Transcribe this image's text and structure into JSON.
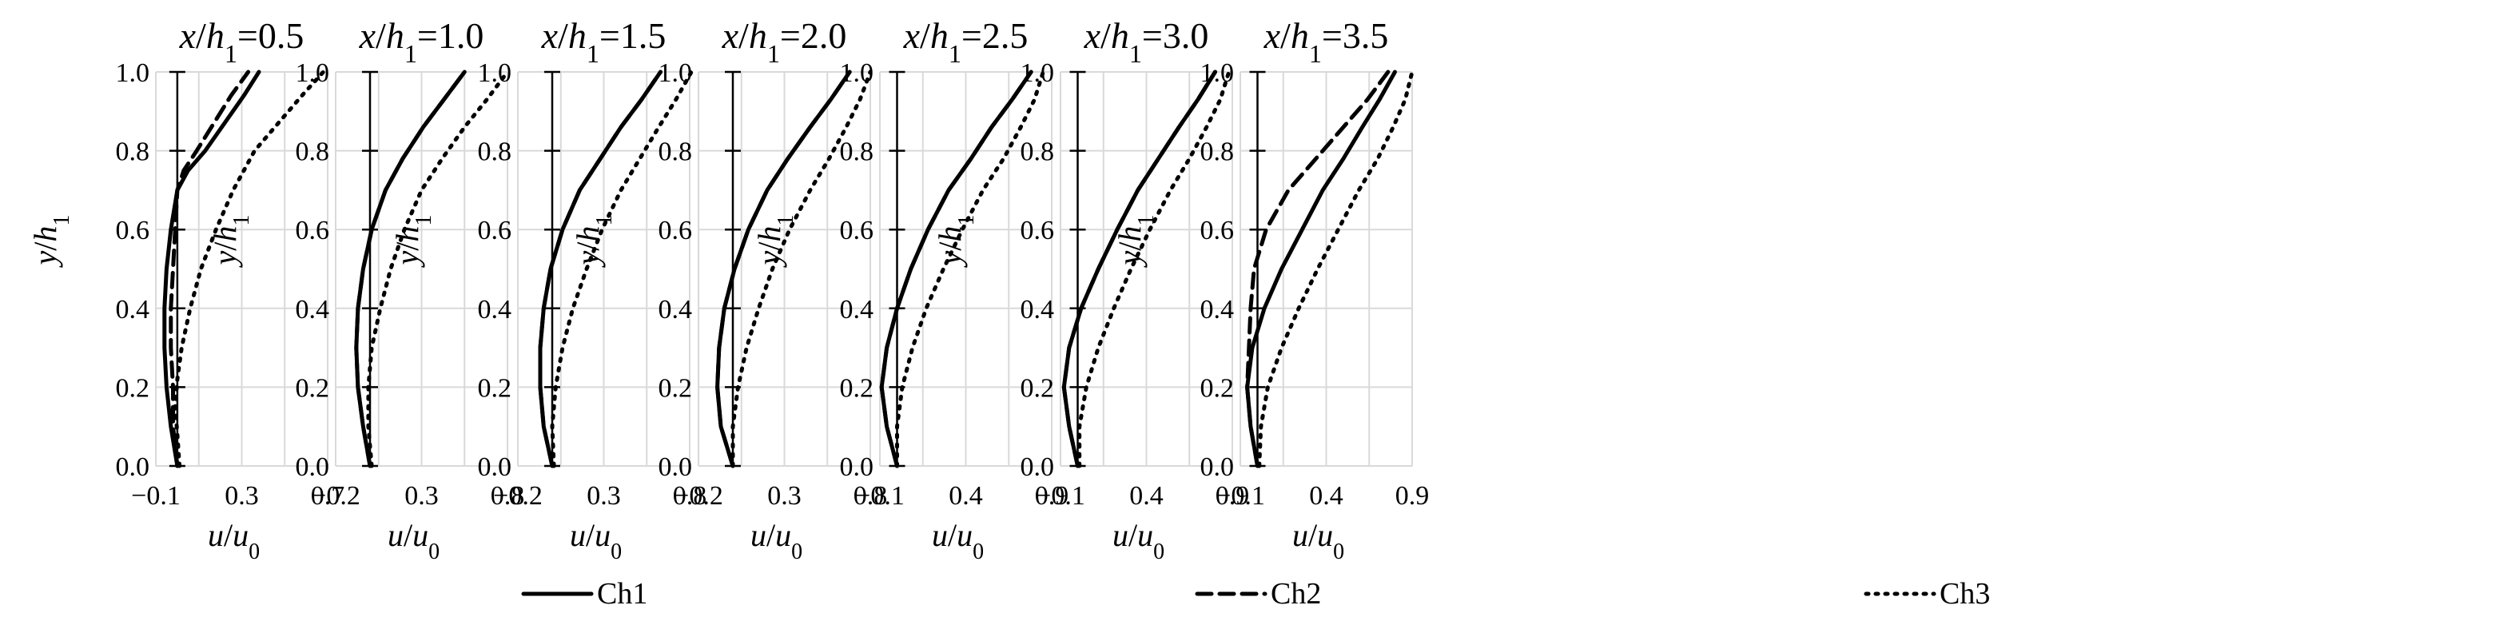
{
  "chart_data": {
    "type": "line",
    "legend": {
      "position": "bottom",
      "entries": [
        {
          "name": "Ch1",
          "dash": "solid"
        },
        {
          "name": "Ch2",
          "dash": "dashed"
        },
        {
          "name": "Ch3",
          "dash": "dotted"
        }
      ]
    },
    "panels": [
      {
        "title": {
          "var": "x",
          "den": "h",
          "sub": "1",
          "eq": "=0.5"
        },
        "xlabel": {
          "var": "u",
          "den": "u",
          "sub": "0"
        },
        "ylabel": {
          "var": "y",
          "den": "h",
          "sub": "1"
        },
        "xlim": [
          -0.1,
          0.7
        ],
        "ylim": [
          0.0,
          1.0
        ],
        "xticks": [
          -0.1,
          0.3,
          0.7
        ],
        "xtick_labels": [
          "−0.1",
          "0.3",
          "0.7"
        ],
        "yticks": [
          0.0,
          0.2,
          0.4,
          0.6,
          0.8,
          1.0
        ],
        "ytick_labels": [
          "0.0",
          "0.2",
          "0.4",
          "0.6",
          "0.8",
          "1.0"
        ],
        "grid": true,
        "zero_line": true,
        "series": [
          {
            "name": "Ch1",
            "x": [
              0.0,
              -0.03,
              -0.05,
              -0.06,
              -0.06,
              -0.05,
              -0.03,
              0.0,
              0.05,
              0.13,
              0.22,
              0.31,
              0.38
            ],
            "y": [
              0.0,
              0.1,
              0.2,
              0.3,
              0.4,
              0.5,
              0.6,
              0.7,
              0.75,
              0.8,
              0.87,
              0.94,
              1.0
            ]
          },
          {
            "name": "Ch2",
            "x": [
              0.0,
              -0.02,
              -0.02,
              -0.03,
              -0.03,
              -0.02,
              -0.01,
              0.0,
              0.03,
              0.09,
              0.17,
              0.25,
              0.33
            ],
            "y": [
              0.0,
              0.1,
              0.2,
              0.3,
              0.4,
              0.5,
              0.6,
              0.7,
              0.75,
              0.8,
              0.87,
              0.94,
              1.0
            ]
          },
          {
            "name": "Ch3",
            "x": [
              0.01,
              0.0,
              -0.01,
              0.0,
              0.02,
              0.06,
              0.11,
              0.18,
              0.26,
              0.36,
              0.47,
              0.58,
              0.68
            ],
            "y": [
              0.0,
              0.08,
              0.15,
              0.22,
              0.3,
              0.4,
              0.5,
              0.6,
              0.7,
              0.8,
              0.87,
              0.94,
              1.0
            ]
          }
        ]
      },
      {
        "title": {
          "var": "x",
          "den": "h",
          "sub": "1",
          "eq": "=1.0"
        },
        "xlabel": {
          "var": "u",
          "den": "u",
          "sub": "0"
        },
        "ylabel": {
          "var": "y",
          "den": "h",
          "sub": "1"
        },
        "xlim": [
          -0.2,
          0.8
        ],
        "ylim": [
          0.0,
          1.0
        ],
        "xticks": [
          -0.2,
          0.3,
          0.8
        ],
        "xtick_labels": [
          "−0.2",
          "0.3",
          "0.8"
        ],
        "yticks": [
          0.0,
          0.2,
          0.4,
          0.6,
          0.8,
          1.0
        ],
        "ytick_labels": [
          "0.0",
          "0.2",
          "0.4",
          "0.6",
          "0.8",
          "1.0"
        ],
        "grid": true,
        "zero_line": true,
        "series": [
          {
            "name": "Ch1",
            "x": [
              0.0,
              -0.04,
              -0.07,
              -0.08,
              -0.07,
              -0.04,
              0.01,
              0.09,
              0.19,
              0.31,
              0.43,
              0.55
            ],
            "y": [
              0.0,
              0.1,
              0.2,
              0.3,
              0.4,
              0.5,
              0.6,
              0.7,
              0.78,
              0.86,
              0.93,
              1.0
            ]
          },
          {
            "name": "Ch2",
            "x": [
              0.0,
              -0.04,
              -0.07,
              -0.08,
              -0.07,
              -0.04,
              0.01,
              0.09,
              0.19,
              0.31,
              0.43,
              0.55
            ],
            "y": [
              0.0,
              0.1,
              0.2,
              0.3,
              0.4,
              0.5,
              0.6,
              0.7,
              0.78,
              0.86,
              0.93,
              1.0
            ]
          },
          {
            "name": "Ch3",
            "x": [
              0.01,
              -0.01,
              -0.01,
              0.01,
              0.06,
              0.12,
              0.2,
              0.3,
              0.42,
              0.55,
              0.68,
              0.8
            ],
            "y": [
              0.0,
              0.1,
              0.2,
              0.3,
              0.4,
              0.5,
              0.6,
              0.7,
              0.78,
              0.86,
              0.93,
              1.0
            ]
          }
        ]
      },
      {
        "title": {
          "var": "x",
          "den": "h",
          "sub": "1",
          "eq": "=1.5"
        },
        "xlabel": {
          "var": "u",
          "den": "u",
          "sub": "0"
        },
        "ylabel": {
          "var": "y",
          "den": "h",
          "sub": "1"
        },
        "xlim": [
          -0.2,
          0.8
        ],
        "ylim": [
          0.0,
          1.0
        ],
        "xticks": [
          -0.2,
          0.3,
          0.8
        ],
        "xtick_labels": [
          "−0.2",
          "0.3",
          "0.8"
        ],
        "yticks": [
          0.0,
          0.2,
          0.4,
          0.6,
          0.8,
          1.0
        ],
        "ytick_labels": [
          "0.0",
          "0.2",
          "0.4",
          "0.6",
          "0.8",
          "1.0"
        ],
        "grid": true,
        "zero_line": true,
        "series": [
          {
            "name": "Ch1",
            "x": [
              0.0,
              -0.05,
              -0.07,
              -0.07,
              -0.05,
              -0.01,
              0.06,
              0.16,
              0.28,
              0.4,
              0.52,
              0.63
            ],
            "y": [
              0.0,
              0.1,
              0.2,
              0.3,
              0.4,
              0.5,
              0.6,
              0.7,
              0.78,
              0.86,
              0.93,
              1.0
            ]
          },
          {
            "name": "Ch2",
            "x": [
              0.0,
              -0.05,
              -0.07,
              -0.07,
              -0.05,
              -0.01,
              0.06,
              0.16,
              0.28,
              0.4,
              0.52,
              0.63
            ],
            "y": [
              0.0,
              0.1,
              0.2,
              0.3,
              0.4,
              0.5,
              0.6,
              0.7,
              0.78,
              0.86,
              0.93,
              1.0
            ]
          },
          {
            "name": "Ch3",
            "x": [
              0.01,
              0.0,
              0.02,
              0.06,
              0.12,
              0.2,
              0.29,
              0.4,
              0.51,
              0.62,
              0.72,
              0.81
            ],
            "y": [
              0.0,
              0.1,
              0.2,
              0.3,
              0.4,
              0.5,
              0.6,
              0.7,
              0.78,
              0.86,
              0.93,
              1.0
            ]
          }
        ]
      },
      {
        "title": {
          "var": "x",
          "den": "h",
          "sub": "1",
          "eq": "=2.0"
        },
        "xlabel": {
          "var": "u",
          "den": "u",
          "sub": "0"
        },
        "ylabel": {
          "var": "y",
          "den": "h",
          "sub": "1"
        },
        "xlim": [
          -0.2,
          0.8
        ],
        "ylim": [
          0.0,
          1.0
        ],
        "xticks": [
          -0.2,
          0.3,
          0.8
        ],
        "xtick_labels": [
          "−0.2",
          "0.3",
          "0.8"
        ],
        "yticks": [
          0.0,
          0.2,
          0.4,
          0.6,
          0.8,
          1.0
        ],
        "ytick_labels": [
          "0.0",
          "0.2",
          "0.4",
          "0.6",
          "0.8",
          "1.0"
        ],
        "grid": true,
        "zero_line": true,
        "series": [
          {
            "name": "Ch1",
            "x": [
              0.0,
              -0.07,
              -0.09,
              -0.08,
              -0.05,
              0.01,
              0.09,
              0.2,
              0.32,
              0.45,
              0.57,
              0.68
            ],
            "y": [
              0.0,
              0.1,
              0.2,
              0.3,
              0.4,
              0.5,
              0.6,
              0.7,
              0.78,
              0.86,
              0.93,
              1.0
            ]
          },
          {
            "name": "Ch2",
            "x": [
              0.0,
              -0.07,
              -0.09,
              -0.08,
              -0.05,
              0.01,
              0.09,
              0.2,
              0.32,
              0.45,
              0.57,
              0.68
            ],
            "y": [
              0.0,
              0.1,
              0.2,
              0.3,
              0.4,
              0.5,
              0.6,
              0.7,
              0.78,
              0.86,
              0.93,
              1.0
            ]
          },
          {
            "name": "Ch3",
            "x": [
              0.0,
              0.0,
              0.03,
              0.08,
              0.15,
              0.23,
              0.33,
              0.45,
              0.56,
              0.66,
              0.74,
              0.8
            ],
            "y": [
              0.0,
              0.1,
              0.2,
              0.3,
              0.4,
              0.5,
              0.6,
              0.7,
              0.78,
              0.86,
              0.93,
              1.0
            ]
          }
        ]
      },
      {
        "title": {
          "var": "x",
          "den": "h",
          "sub": "1",
          "eq": "=2.5"
        },
        "xlabel": {
          "var": "u",
          "den": "u",
          "sub": "0"
        },
        "ylabel": {
          "var": "y",
          "den": "h",
          "sub": "1"
        },
        "xlim": [
          -0.1,
          0.9
        ],
        "ylim": [
          0.0,
          1.0
        ],
        "xticks": [
          -0.1,
          0.4,
          0.9
        ],
        "xtick_labels": [
          "−0.1",
          "0.4",
          "0.9"
        ],
        "yticks": [
          0.0,
          0.2,
          0.4,
          0.6,
          0.8,
          1.0
        ],
        "ytick_labels": [
          "0.0",
          "0.2",
          "0.4",
          "0.6",
          "0.8",
          "1.0"
        ],
        "grid": true,
        "zero_line": true,
        "series": [
          {
            "name": "Ch1",
            "x": [
              0.0,
              -0.06,
              -0.09,
              -0.06,
              0.0,
              0.08,
              0.18,
              0.3,
              0.43,
              0.55,
              0.67,
              0.78
            ],
            "y": [
              0.0,
              0.1,
              0.2,
              0.3,
              0.4,
              0.5,
              0.6,
              0.7,
              0.78,
              0.86,
              0.93,
              1.0
            ]
          },
          {
            "name": "Ch2",
            "x": [
              0.0,
              -0.06,
              -0.09,
              -0.06,
              0.0,
              0.08,
              0.18,
              0.3,
              0.43,
              0.55,
              0.67,
              0.78
            ],
            "y": [
              0.0,
              0.1,
              0.2,
              0.3,
              0.4,
              0.5,
              0.6,
              0.7,
              0.78,
              0.86,
              0.93,
              1.0
            ]
          },
          {
            "name": "Ch3",
            "x": [
              0.0,
              0.0,
              0.03,
              0.09,
              0.17,
              0.27,
              0.38,
              0.5,
              0.62,
              0.72,
              0.8,
              0.85
            ],
            "y": [
              0.0,
              0.1,
              0.2,
              0.3,
              0.4,
              0.5,
              0.6,
              0.7,
              0.78,
              0.86,
              0.93,
              1.0
            ]
          }
        ]
      },
      {
        "title": {
          "var": "x",
          "den": "h",
          "sub": "1",
          "eq": "=3.0"
        },
        "xlabel": {
          "var": "u",
          "den": "u",
          "sub": "0"
        },
        "ylabel": {
          "var": "y",
          "den": "h",
          "sub": "1"
        },
        "xlim": [
          -0.1,
          0.9
        ],
        "ylim": [
          0.0,
          1.0
        ],
        "xticks": [
          -0.1,
          0.4,
          0.9
        ],
        "xtick_labels": [
          "−0.1",
          "0.4",
          "0.9"
        ],
        "yticks": [
          0.0,
          0.2,
          0.4,
          0.6,
          0.8,
          1.0
        ],
        "ytick_labels": [
          "0.0",
          "0.2",
          "0.4",
          "0.6",
          "0.8",
          "1.0"
        ],
        "grid": true,
        "zero_line": true,
        "series": [
          {
            "name": "Ch1",
            "x": [
              0.0,
              -0.05,
              -0.08,
              -0.05,
              0.02,
              0.12,
              0.23,
              0.35,
              0.47,
              0.59,
              0.7,
              0.8
            ],
            "y": [
              0.0,
              0.1,
              0.2,
              0.3,
              0.4,
              0.5,
              0.6,
              0.7,
              0.78,
              0.86,
              0.93,
              1.0
            ]
          },
          {
            "name": "Ch2",
            "x": [
              0.0,
              -0.05,
              -0.08,
              -0.05,
              0.02,
              0.12,
              0.23,
              0.35,
              0.47,
              0.59,
              0.7,
              0.8
            ],
            "y": [
              0.0,
              0.1,
              0.2,
              0.3,
              0.4,
              0.5,
              0.6,
              0.7,
              0.78,
              0.86,
              0.93,
              1.0
            ]
          },
          {
            "name": "Ch3",
            "x": [
              0.01,
              0.01,
              0.05,
              0.12,
              0.21,
              0.31,
              0.42,
              0.54,
              0.65,
              0.75,
              0.83,
              0.88
            ],
            "y": [
              0.0,
              0.1,
              0.2,
              0.3,
              0.4,
              0.5,
              0.6,
              0.7,
              0.78,
              0.86,
              0.93,
              1.0
            ]
          }
        ]
      },
      {
        "title": {
          "var": "x",
          "den": "h",
          "sub": "1",
          "eq": "=3.5"
        },
        "xlabel": {
          "var": "u",
          "den": "u",
          "sub": "0"
        },
        "ylabel": {
          "var": "y",
          "den": "h",
          "sub": "1"
        },
        "xlim": [
          -0.1,
          0.9
        ],
        "ylim": [
          0.0,
          1.0
        ],
        "xticks": [
          -0.1,
          0.4,
          0.9
        ],
        "xtick_labels": [
          "−0.1",
          "0.4",
          "0.9"
        ],
        "yticks": [
          0.0,
          0.2,
          0.4,
          0.6,
          0.8,
          1.0
        ],
        "ytick_labels": [
          "0.0",
          "0.2",
          "0.4",
          "0.6",
          "0.8",
          "1.0"
        ],
        "grid": true,
        "zero_line": true,
        "series": [
          {
            "name": "Ch1",
            "x": [
              0.0,
              -0.04,
              -0.06,
              -0.03,
              0.04,
              0.14,
              0.26,
              0.38,
              0.5,
              0.61,
              0.71,
              0.8
            ],
            "y": [
              0.0,
              0.1,
              0.2,
              0.3,
              0.4,
              0.5,
              0.6,
              0.7,
              0.78,
              0.86,
              0.93,
              1.0
            ]
          },
          {
            "name": "Ch2",
            "x": [
              0.0,
              -0.04,
              -0.06,
              -0.05,
              -0.04,
              -0.02,
              0.05,
              0.18,
              0.34,
              0.5,
              0.64,
              0.76
            ],
            "y": [
              0.0,
              0.1,
              0.2,
              0.3,
              0.4,
              0.5,
              0.6,
              0.7,
              0.78,
              0.86,
              0.93,
              1.0
            ]
          },
          {
            "name": "Ch3",
            "x": [
              0.01,
              0.02,
              0.06,
              0.14,
              0.24,
              0.35,
              0.47,
              0.59,
              0.7,
              0.79,
              0.86,
              0.9
            ],
            "y": [
              0.0,
              0.1,
              0.2,
              0.3,
              0.4,
              0.5,
              0.6,
              0.7,
              0.78,
              0.86,
              0.93,
              1.0
            ]
          }
        ]
      }
    ]
  }
}
